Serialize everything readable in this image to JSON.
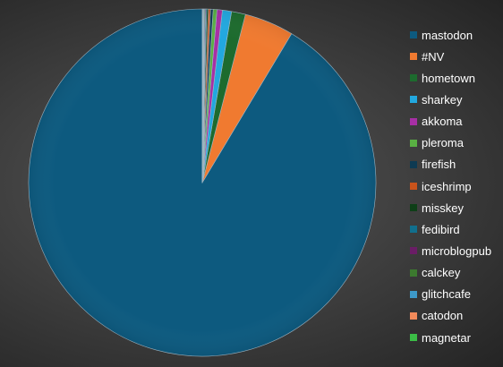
{
  "chart_data": {
    "type": "pie",
    "title": "",
    "grid": false,
    "legend_position": "right",
    "categories": [
      "mastodon",
      "#NV",
      "hometown",
      "sharkey",
      "akkoma",
      "pleroma",
      "firefish",
      "iceshrimp",
      "misskey",
      "fedibird",
      "microblogpub",
      "calckey",
      "glitchcafe",
      "catodon",
      "magnetar"
    ],
    "values": [
      91.4,
      4.6,
      1.3,
      0.85,
      0.5,
      0.35,
      0.25,
      0.2,
      0.15,
      0.1,
      0.08,
      0.07,
      0.06,
      0.05,
      0.04
    ],
    "colors": [
      "#0d5a7f",
      "#f07a30",
      "#1d6b2e",
      "#22a8df",
      "#a72fa5",
      "#59b043",
      "#0e3a52",
      "#c9531b",
      "#0e3f17",
      "#116f8d",
      "#6a1d66",
      "#3c7a2f",
      "#3d99c9",
      "#f28a5a",
      "#3bbd46"
    ]
  }
}
